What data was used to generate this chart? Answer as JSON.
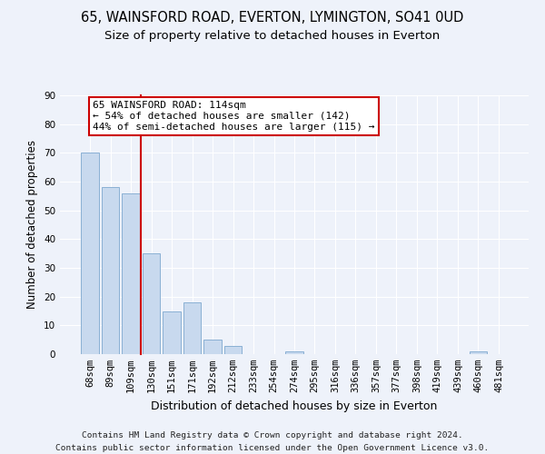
{
  "title": "65, WAINSFORD ROAD, EVERTON, LYMINGTON, SO41 0UD",
  "subtitle": "Size of property relative to detached houses in Everton",
  "xlabel": "Distribution of detached houses by size in Everton",
  "ylabel": "Number of detached properties",
  "bar_labels": [
    "68sqm",
    "89sqm",
    "109sqm",
    "130sqm",
    "151sqm",
    "171sqm",
    "192sqm",
    "212sqm",
    "233sqm",
    "254sqm",
    "274sqm",
    "295sqm",
    "316sqm",
    "336sqm",
    "357sqm",
    "377sqm",
    "398sqm",
    "419sqm",
    "439sqm",
    "460sqm",
    "481sqm"
  ],
  "bar_values": [
    70,
    58,
    56,
    35,
    15,
    18,
    5,
    3,
    0,
    0,
    1,
    0,
    0,
    0,
    0,
    0,
    0,
    0,
    0,
    1,
    0
  ],
  "bar_color": "#c8d9ee",
  "bar_edge_color": "#8ab0d4",
  "vline_x": 2.5,
  "vline_color": "#cc0000",
  "annotation_title": "65 WAINSFORD ROAD: 114sqm",
  "annotation_line1": "← 54% of detached houses are smaller (142)",
  "annotation_line2": "44% of semi-detached houses are larger (115) →",
  "annotation_box_color": "#ffffff",
  "annotation_box_edge": "#cc0000",
  "ylim": [
    0,
    90
  ],
  "yticks": [
    0,
    10,
    20,
    30,
    40,
    50,
    60,
    70,
    80,
    90
  ],
  "footnote1": "Contains HM Land Registry data © Crown copyright and database right 2024.",
  "footnote2": "Contains public sector information licensed under the Open Government Licence v3.0.",
  "title_fontsize": 10.5,
  "subtitle_fontsize": 9.5,
  "xlabel_fontsize": 9,
  "ylabel_fontsize": 8.5,
  "tick_fontsize": 7.5,
  "annotation_fontsize": 8,
  "footnote_fontsize": 6.8,
  "background_color": "#eef2fa"
}
